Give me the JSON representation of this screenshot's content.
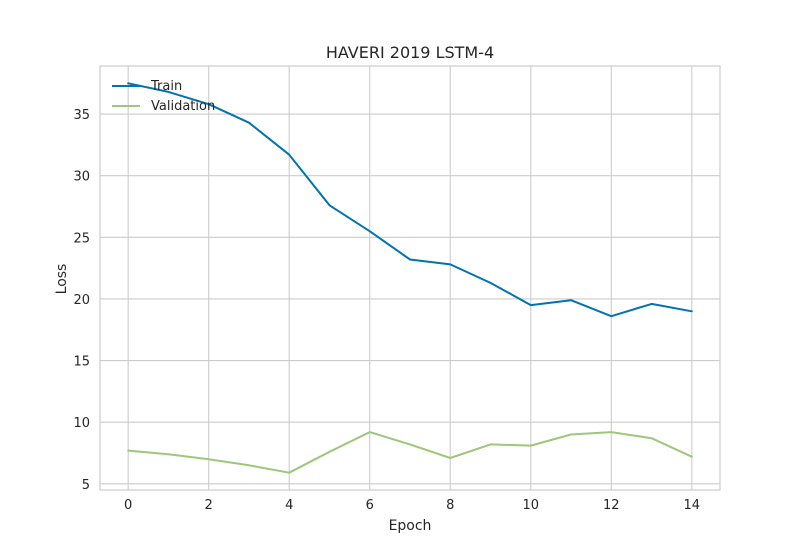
{
  "chart_data": {
    "type": "line",
    "title": "HAVERI 2019 LSTM-4",
    "xlabel": "Epoch",
    "ylabel": "Loss",
    "x": [
      0,
      1,
      2,
      3,
      4,
      5,
      6,
      7,
      8,
      9,
      10,
      11,
      12,
      13,
      14
    ],
    "xlim": [
      -0.7,
      14.7
    ],
    "ylim": [
      4.5,
      38.9
    ],
    "xticks": [
      0,
      2,
      4,
      6,
      8,
      10,
      12,
      14
    ],
    "yticks": [
      5,
      10,
      15,
      20,
      25,
      30,
      35
    ],
    "grid": true,
    "legend_position": "top-left",
    "series": [
      {
        "name": "Train",
        "color": "#0173b2",
        "values": [
          37.5,
          36.8,
          35.8,
          34.3,
          31.7,
          27.6,
          25.5,
          23.2,
          22.8,
          21.3,
          19.5,
          19.9,
          18.6,
          19.6,
          19.0
        ]
      },
      {
        "name": "Validation",
        "color": "#9dc77a",
        "values": [
          7.7,
          7.4,
          7.0,
          6.5,
          5.9,
          7.6,
          9.2,
          8.2,
          7.1,
          8.2,
          8.1,
          9.0,
          9.2,
          8.7,
          7.2
        ]
      }
    ]
  }
}
